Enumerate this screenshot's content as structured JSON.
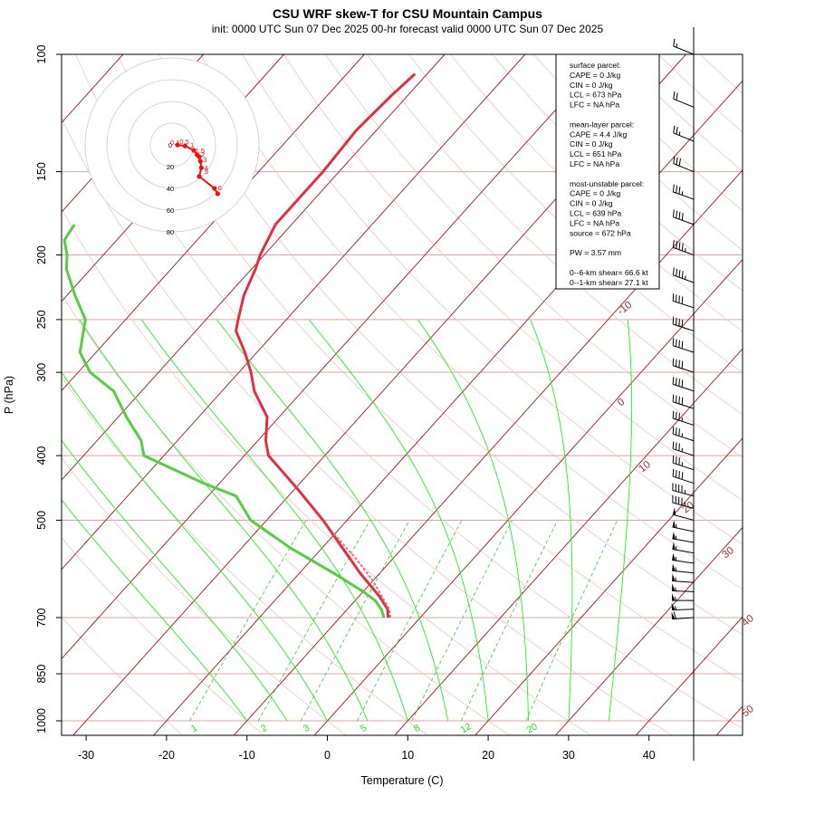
{
  "title": "CSU WRF skew-T for CSU Mountain Campus",
  "subtitle": "init: 0000 UTC Sun 07 Dec 2025    00-hr forecast valid 0000 UTC Sun 07 Dec 2025",
  "colors": {
    "isotherm": "#a52a2a",
    "isobar": "#e8a0a0",
    "dry_adiabat": "#f0c4c4",
    "moist_adiabat": "#22ee22",
    "mixing_ratio": "#33cc33",
    "temperature": "#e03040",
    "parcel": "#e07080",
    "dewpoint": "#55cc44",
    "hodograph": "#ee1111",
    "hodo_rings": "#cccccc"
  },
  "info_box": {
    "lines": [
      "surface parcel:",
      "CAPE = 0 J/kg",
      "CIN = 0 J/kg",
      "LCL = 673 hPa",
      "LFC = NA hPa",
      "",
      "mean-layer parcel:",
      "CAPE = 4.4 J/kg",
      "CIN = 0 J/kg",
      "LCL = 651 hPa",
      "LFC = NA hPa",
      "",
      "most-unstable parcel:",
      "CAPE = 0 J/kg",
      "CIN = 0 J/kg",
      "LCL = 639 hPa",
      "LFC = NA hPa",
      "source = 672 hPa",
      "",
      "PW =  3.57 mm",
      "",
      "0--6-km shear= 66.6 kt",
      "0--1-km shear= 27.1 kt"
    ]
  },
  "chart_data": {
    "type": "skew-T log-P",
    "title": "CSU WRF skew-T for CSU Mountain Campus",
    "subtitle": "init: 0000 UTC Sun 07 Dec 2025    00-hr forecast valid 0000 UTC Sun 07 Dec 2025",
    "xlabel": "Temperature (C)",
    "ylabel": "P (hPa)",
    "x_ticks": [
      -30,
      -20,
      -10,
      0,
      10,
      20,
      30,
      40
    ],
    "y_ticks": [
      100,
      150,
      200,
      250,
      300,
      400,
      500,
      700,
      850,
      1000
    ],
    "x_range_at_bottom": [
      -33,
      51
    ],
    "y_range": [
      1050,
      100
    ],
    "y_scale": "log",
    "isotherm_labels": [
      -10,
      0,
      10,
      20,
      30,
      40,
      50
    ],
    "mixing_ratio_labels": [
      "1",
      "2",
      "3",
      "5",
      "8",
      "12",
      "20"
    ],
    "series": [
      {
        "name": "temperature",
        "pressure": [
          700,
          680,
          650,
          600,
          550,
          500,
          450,
          400,
          380,
          350,
          320,
          300,
          280,
          260,
          250,
          230,
          210,
          200,
          180,
          160,
          150,
          130,
          115,
          107
        ],
        "values": [
          -4.0,
          -5.0,
          -7.5,
          -12.5,
          -17.5,
          -23.0,
          -29.5,
          -37.0,
          -39.0,
          -41.5,
          -46.0,
          -48.5,
          -51.5,
          -55.0,
          -56.0,
          -58.0,
          -59.5,
          -60.5,
          -62.0,
          -62.0,
          -62.0,
          -62.5,
          -62.0,
          -61.5
        ]
      },
      {
        "name": "parcel",
        "pressure": [
          700,
          680,
          650,
          620,
          600,
          570,
          550,
          520
        ],
        "values": [
          -3.7,
          -4.8,
          -7.2,
          -9.7,
          -11.6,
          -14.7,
          -17.0,
          -20.6
        ]
      },
      {
        "name": "dewpoint",
        "pressure": [
          700,
          680,
          660,
          640,
          600,
          550,
          500,
          460,
          440,
          400,
          380,
          350,
          320,
          300,
          280,
          250,
          230,
          210,
          200,
          190,
          180
        ],
        "values": [
          -4.5,
          -5.8,
          -7.5,
          -10.0,
          -15.8,
          -24.0,
          -32.0,
          -36.5,
          -42.0,
          -52.5,
          -54.5,
          -59.0,
          -63.5,
          -68.5,
          -72.0,
          -75.0,
          -79.0,
          -83.0,
          -84.5,
          -86.5,
          -87.0
        ]
      }
    ],
    "hodograph": {
      "ring_labels": [
        "0",
        "20",
        "40",
        "60",
        "80"
      ],
      "point_labels": [
        "0.1",
        "0.5",
        "1",
        "1.5",
        "2",
        "3",
        "4",
        "5",
        "6"
      ],
      "points_kt": [
        [
          5,
          0
        ],
        [
          12,
          -1
        ],
        [
          20,
          -5
        ],
        [
          23,
          -9
        ],
        [
          25,
          -11
        ],
        [
          26,
          -15
        ],
        [
          27,
          -21
        ],
        [
          25,
          -29
        ],
        [
          39,
          -40
        ],
        [
          42,
          -45
        ]
      ]
    },
    "wind_barbs": {
      "pressure": [
        100,
        120,
        135,
        150,
        165,
        180,
        200,
        220,
        240,
        260,
        280,
        300,
        320,
        340,
        360,
        380,
        400,
        420,
        440,
        460,
        480,
        500,
        520,
        540,
        560,
        580,
        600,
        620,
        640,
        660,
        680,
        700
      ],
      "direction_deg": [
        292,
        292,
        292,
        292,
        290,
        290,
        290,
        290,
        288,
        288,
        288,
        288,
        288,
        288,
        288,
        288,
        288,
        288,
        288,
        285,
        285,
        285,
        282,
        280,
        280,
        278,
        276,
        274,
        272,
        270,
        268,
        266
      ],
      "speed_kt": [
        15,
        20,
        25,
        30,
        35,
        40,
        45,
        45,
        40,
        40,
        40,
        40,
        40,
        40,
        35,
        35,
        35,
        35,
        40,
        45,
        45,
        50,
        55,
        55,
        55,
        55,
        55,
        55,
        55,
        55,
        55,
        60
      ]
    }
  }
}
